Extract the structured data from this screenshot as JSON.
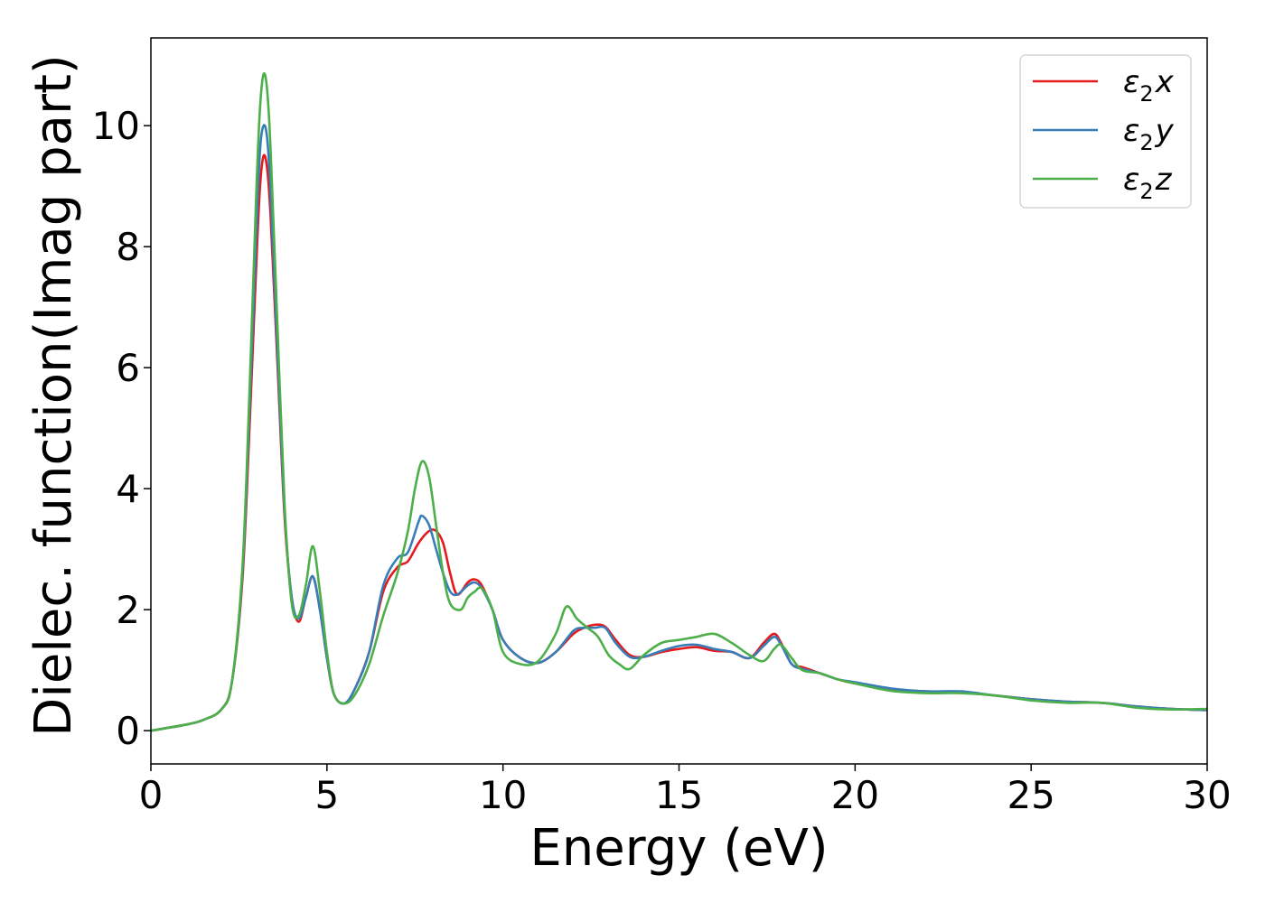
{
  "chart_data": {
    "type": "line",
    "title": "",
    "xlabel": "Energy (eV)",
    "ylabel": "Dielec. function(Imag part)",
    "xlim": [
      0,
      30
    ],
    "ylim": [
      -0.55,
      11.45
    ],
    "xticks": [
      0,
      5,
      10,
      15,
      20,
      25,
      30
    ],
    "yticks": [
      0,
      2,
      4,
      6,
      8,
      10
    ],
    "grid": false,
    "legend_position": "top-right",
    "series": [
      {
        "name": "ε₂x",
        "legend_main": "ε",
        "legend_sub": "2",
        "legend_suffix": "x",
        "color": "#e41a1c",
        "x": [
          0,
          1,
          1.5,
          2,
          2.3,
          2.6,
          2.8,
          3.0,
          3.1,
          3.2,
          3.3,
          3.4,
          3.6,
          3.8,
          4.0,
          4.2,
          4.4,
          4.6,
          4.8,
          5.0,
          5.2,
          5.5,
          5.8,
          6.2,
          6.6,
          7.0,
          7.3,
          7.6,
          7.9,
          8.1,
          8.3,
          8.5,
          8.7,
          9.0,
          9.2,
          9.4,
          9.7,
          10.0,
          10.5,
          11.0,
          11.5,
          12.0,
          12.3,
          12.6,
          12.9,
          13.2,
          13.6,
          14.0,
          14.5,
          15.0,
          15.5,
          16.0,
          16.5,
          17.0,
          17.4,
          17.7,
          17.9,
          18.2,
          18.5,
          19.0,
          19.5,
          20.0,
          21.0,
          22.0,
          23.0,
          24.0,
          25.0,
          26.0,
          27.0,
          28.0,
          29.0,
          30.0
        ],
        "values": [
          0,
          0.1,
          0.18,
          0.35,
          0.8,
          2.5,
          5.0,
          7.8,
          9.0,
          9.5,
          9.3,
          8.5,
          6.0,
          3.5,
          2.2,
          1.8,
          2.2,
          2.55,
          2.0,
          1.2,
          0.6,
          0.45,
          0.7,
          1.3,
          2.3,
          2.7,
          2.8,
          3.1,
          3.3,
          3.3,
          3.1,
          2.6,
          2.25,
          2.45,
          2.5,
          2.4,
          2.0,
          1.5,
          1.2,
          1.12,
          1.3,
          1.6,
          1.7,
          1.75,
          1.72,
          1.5,
          1.25,
          1.22,
          1.3,
          1.35,
          1.38,
          1.32,
          1.3,
          1.2,
          1.45,
          1.6,
          1.45,
          1.1,
          1.05,
          0.95,
          0.85,
          0.78,
          0.68,
          0.65,
          0.63,
          0.58,
          0.52,
          0.48,
          0.46,
          0.4,
          0.36,
          0.34
        ]
      },
      {
        "name": "ε₂y",
        "legend_main": "ε",
        "legend_sub": "2",
        "legend_suffix": "y",
        "color": "#377eb8",
        "x": [
          0,
          1,
          1.5,
          2,
          2.3,
          2.6,
          2.8,
          3.0,
          3.1,
          3.2,
          3.3,
          3.4,
          3.6,
          3.8,
          4.0,
          4.2,
          4.4,
          4.6,
          4.8,
          5.0,
          5.2,
          5.5,
          5.8,
          6.2,
          6.6,
          7.0,
          7.3,
          7.6,
          7.7,
          7.9,
          8.1,
          8.3,
          8.5,
          8.7,
          9.0,
          9.2,
          9.4,
          9.7,
          10.0,
          10.5,
          11.0,
          11.5,
          12.0,
          12.3,
          12.6,
          12.9,
          13.2,
          13.6,
          14.0,
          14.5,
          15.0,
          15.5,
          16.0,
          16.5,
          17.0,
          17.4,
          17.7,
          17.9,
          18.2,
          18.5,
          19.0,
          19.5,
          20.0,
          21.0,
          22.0,
          23.0,
          24.0,
          25.0,
          26.0,
          27.0,
          28.0,
          29.0,
          30.0
        ],
        "values": [
          0,
          0.1,
          0.18,
          0.35,
          0.8,
          2.6,
          5.3,
          8.3,
          9.6,
          10.0,
          9.8,
          8.9,
          6.2,
          3.6,
          2.2,
          1.85,
          2.2,
          2.55,
          2.0,
          1.2,
          0.6,
          0.45,
          0.7,
          1.3,
          2.4,
          2.85,
          2.95,
          3.45,
          3.55,
          3.4,
          3.0,
          2.6,
          2.3,
          2.25,
          2.4,
          2.45,
          2.35,
          2.0,
          1.5,
          1.2,
          1.12,
          1.3,
          1.65,
          1.7,
          1.7,
          1.7,
          1.45,
          1.22,
          1.22,
          1.32,
          1.4,
          1.42,
          1.35,
          1.3,
          1.2,
          1.4,
          1.55,
          1.42,
          1.1,
          1.02,
          0.95,
          0.85,
          0.8,
          0.7,
          0.65,
          0.65,
          0.58,
          0.52,
          0.48,
          0.46,
          0.4,
          0.36,
          0.34
        ]
      },
      {
        "name": "ε₂z",
        "legend_main": "ε",
        "legend_sub": "2",
        "legend_suffix": "z",
        "color": "#4daf4a",
        "x": [
          0,
          1,
          1.5,
          2,
          2.3,
          2.6,
          2.8,
          3.0,
          3.1,
          3.2,
          3.3,
          3.4,
          3.6,
          3.8,
          4.0,
          4.2,
          4.4,
          4.6,
          4.8,
          5.0,
          5.2,
          5.5,
          5.8,
          6.2,
          6.6,
          7.0,
          7.3,
          7.5,
          7.7,
          7.9,
          8.1,
          8.3,
          8.5,
          8.8,
          9.0,
          9.2,
          9.4,
          9.7,
          10.0,
          10.5,
          11.0,
          11.5,
          11.8,
          12.1,
          12.4,
          12.7,
          13.0,
          13.3,
          13.6,
          14.0,
          14.5,
          15.0,
          15.5,
          16.0,
          16.5,
          17.0,
          17.4,
          17.7,
          17.9,
          18.2,
          18.5,
          19.0,
          19.5,
          20.0,
          21.0,
          22.0,
          23.0,
          24.0,
          25.0,
          26.0,
          27.0,
          28.0,
          29.0,
          30.0
        ],
        "values": [
          0,
          0.1,
          0.18,
          0.35,
          0.8,
          2.7,
          5.6,
          9.0,
          10.3,
          10.85,
          10.6,
          9.6,
          6.6,
          3.7,
          2.1,
          1.9,
          2.4,
          3.05,
          2.3,
          1.3,
          0.6,
          0.45,
          0.6,
          1.1,
          1.9,
          2.6,
          3.3,
          4.0,
          4.45,
          4.2,
          3.4,
          2.6,
          2.1,
          2.0,
          2.2,
          2.3,
          2.35,
          2.0,
          1.3,
          1.1,
          1.15,
          1.6,
          2.05,
          1.85,
          1.7,
          1.55,
          1.25,
          1.1,
          1.02,
          1.25,
          1.45,
          1.5,
          1.55,
          1.6,
          1.45,
          1.25,
          1.15,
          1.35,
          1.42,
          1.2,
          1.0,
          0.95,
          0.85,
          0.78,
          0.66,
          0.62,
          0.62,
          0.58,
          0.5,
          0.46,
          0.46,
          0.38,
          0.35,
          0.36
        ]
      }
    ]
  }
}
